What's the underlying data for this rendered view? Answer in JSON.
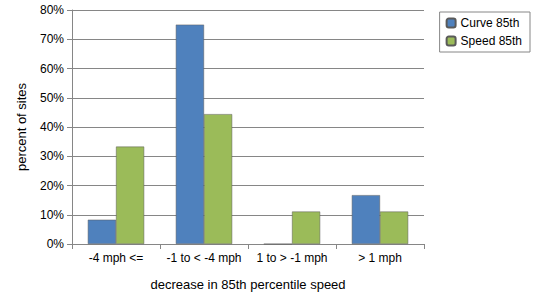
{
  "chart_data": {
    "type": "bar",
    "categories": [
      "-4 mph <=",
      "-1 to < -4 mph",
      "1 to > -1 mph",
      "> 1 mph"
    ],
    "series": [
      {
        "name": "Curve 85th",
        "color": "#4f81bd",
        "values": [
          8.3,
          75,
          0,
          16.7
        ]
      },
      {
        "name": "Speed 85th",
        "color": "#9bbb59",
        "values": [
          33.3,
          44.4,
          11.1,
          11.1
        ]
      }
    ],
    "x_label": "decrease in 85th percentile speed",
    "y_label": "percent of sites",
    "ylim": [
      0,
      80
    ],
    "yticks": [
      {
        "value": 0,
        "label": "0%"
      },
      {
        "value": 10,
        "label": "10%"
      },
      {
        "value": 20,
        "label": "20%"
      },
      {
        "value": 30,
        "label": "30%"
      },
      {
        "value": 40,
        "label": "40%"
      },
      {
        "value": 50,
        "label": "50%"
      },
      {
        "value": 60,
        "label": "60%"
      },
      {
        "value": 70,
        "label": "70%"
      },
      {
        "value": 80,
        "label": "80%"
      }
    ],
    "grid": true,
    "legend": "right"
  }
}
